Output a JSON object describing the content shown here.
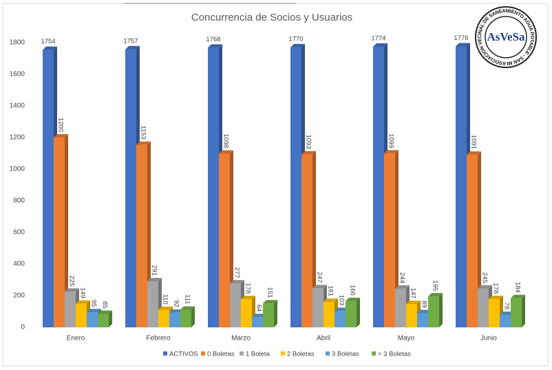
{
  "chart_data": {
    "type": "bar3d",
    "title": "Concurrencia de Socios y Usuarios",
    "categories": [
      "Enero",
      "Febrero",
      "Marzo",
      "Abril",
      "Mayo",
      "Junio"
    ],
    "series": [
      {
        "name": "ACTIVOS",
        "color": "#4472c4",
        "values": [
          1754,
          1757,
          1768,
          1770,
          1774,
          1776
        ]
      },
      {
        "name": "0 Boletas",
        "color": "#ed7d31",
        "values": [
          1200,
          1153,
          1098,
          1093,
          1099,
          1091
        ]
      },
      {
        "name": "1 Boleta",
        "color": "#a5a5a5",
        "values": [
          225,
          291,
          277,
          247,
          244,
          245
        ]
      },
      {
        "name": "2 Boletas",
        "color": "#ffc000",
        "values": [
          149,
          110,
          178,
          161,
          147,
          178
        ]
      },
      {
        "name": "3 Boletas",
        "color": "#5b9bd5",
        "values": [
          95,
          92,
          64,
          103,
          89,
          78
        ]
      },
      {
        "name": "> 3 Boletas",
        "color": "#70ad47",
        "values": [
          85,
          111,
          151,
          166,
          195,
          184
        ]
      }
    ],
    "ylim": [
      0,
      1800
    ],
    "yticks": [
      0,
      200,
      400,
      600,
      800,
      1000,
      1200,
      1400,
      1600,
      1800
    ],
    "grid": false,
    "legend": "bottom",
    "logo": {
      "name": "AsVeSa",
      "ring": "ASOCIACION VECINAL DE SANEAMIENTO AGUA POTABLE - SAN MIGUEL"
    }
  }
}
